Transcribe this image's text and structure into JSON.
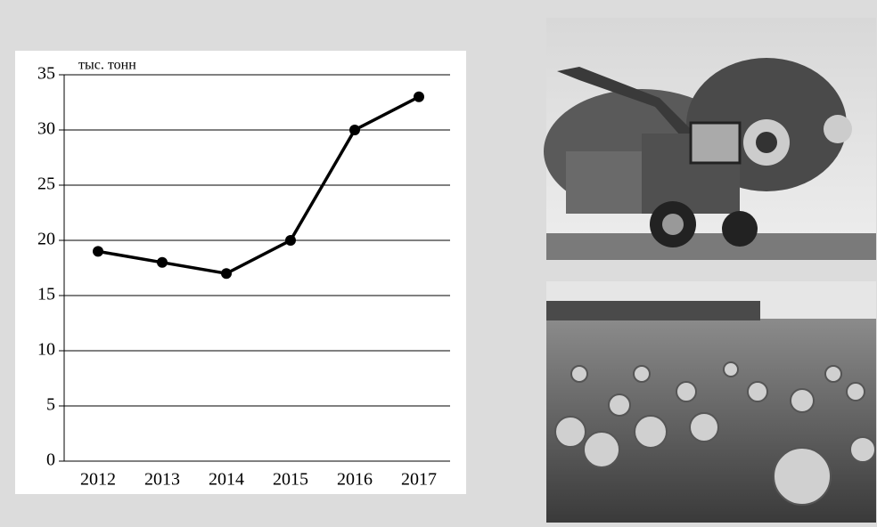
{
  "chart_data": {
    "type": "line",
    "y_label": "тыс. тонн",
    "categories": [
      "2012",
      "2013",
      "2014",
      "2015",
      "2016",
      "2017"
    ],
    "values": [
      19,
      18,
      17,
      20,
      30,
      33
    ],
    "color": "#000000",
    "ylim": [
      0,
      35
    ],
    "yticks": [
      0,
      5,
      10,
      15,
      20,
      25,
      30,
      35
    ],
    "grid": true
  }
}
